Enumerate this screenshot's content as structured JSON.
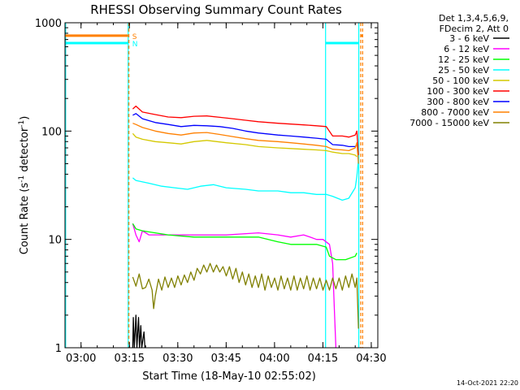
{
  "chart_data": {
    "type": "line",
    "title": "RHESSI Observing Summary Count Rates",
    "xlabel": "Start Time (18-May-10 02:55:02)",
    "ylabel_main": "Count Rate (s",
    "ylabel_sup1": "-1",
    "ylabel_mid": " detector",
    "ylabel_sup2": "-1",
    "ylabel_end": ")",
    "yscale": "log",
    "ylim": [
      1,
      1000
    ],
    "xlim_minutes": [
      0,
      97
    ],
    "x_ticks": [
      {
        "label": "03:00",
        "min": 4.97
      },
      {
        "label": "03:15",
        "min": 19.97
      },
      {
        "label": "03:30",
        "min": 34.97
      },
      {
        "label": "03:45",
        "min": 49.97
      },
      {
        "label": "04:00",
        "min": 64.97
      },
      {
        "label": "04:15",
        "min": 79.97
      },
      {
        "label": "04:30",
        "min": 94.97
      }
    ],
    "y_ticks": [
      {
        "label": "1",
        "value": 1
      },
      {
        "label": "10",
        "value": 10
      },
      {
        "label": "100",
        "value": 100
      },
      {
        "label": "1000",
        "value": 1000
      }
    ],
    "legend_header": [
      "Det 1,3,4,5,6,9,",
      "FDecim 2, Att 0"
    ],
    "series": [
      {
        "name": "3 - 6 keV",
        "color": "#000000",
        "points": [
          [
            21.0,
            1.0
          ],
          [
            21.2,
            1.9
          ],
          [
            21.5,
            1.0
          ],
          [
            22.0,
            2.0
          ],
          [
            22.3,
            1.0
          ],
          [
            22.8,
            1.9
          ],
          [
            23.1,
            1.0
          ],
          [
            23.5,
            1.6
          ],
          [
            23.8,
            1.0
          ],
          [
            24.5,
            1.4
          ],
          [
            24.8,
            1.0
          ]
        ]
      },
      {
        "name": "6 - 12 keV",
        "color": "#ff00ff",
        "points": [
          [
            21,
            14
          ],
          [
            22,
            11
          ],
          [
            23,
            9.5
          ],
          [
            24,
            12
          ],
          [
            26,
            11
          ],
          [
            28,
            11
          ],
          [
            32,
            11
          ],
          [
            40,
            11
          ],
          [
            50,
            11
          ],
          [
            60,
            11.5
          ],
          [
            66,
            11
          ],
          [
            70,
            10.5
          ],
          [
            74,
            11
          ],
          [
            76,
            10.5
          ],
          [
            78,
            10
          ],
          [
            80,
            10
          ],
          [
            82,
            9
          ],
          [
            83,
            6
          ],
          [
            83.6,
            2
          ],
          [
            84,
            1
          ]
        ]
      },
      {
        "name": "12 - 25 keV",
        "color": "#00ff00",
        "points": [
          [
            21,
            14
          ],
          [
            22,
            12.5
          ],
          [
            24,
            12
          ],
          [
            28,
            11.5
          ],
          [
            32,
            11
          ],
          [
            40,
            10.5
          ],
          [
            50,
            10.5
          ],
          [
            60,
            10.5
          ],
          [
            66,
            9.5
          ],
          [
            70,
            9
          ],
          [
            74,
            9
          ],
          [
            78,
            9
          ],
          [
            81,
            8.5
          ],
          [
            82,
            7
          ],
          [
            84,
            6.5
          ],
          [
            87,
            6.5
          ],
          [
            90,
            7
          ],
          [
            90.5,
            7.5
          ]
        ]
      },
      {
        "name": "25 - 50 keV",
        "color": "#00ffff",
        "points": [
          [
            21,
            37
          ],
          [
            22,
            35
          ],
          [
            26,
            33
          ],
          [
            30,
            31
          ],
          [
            34,
            30
          ],
          [
            38,
            29
          ],
          [
            42,
            31
          ],
          [
            46,
            32
          ],
          [
            50,
            30
          ],
          [
            56,
            29
          ],
          [
            60,
            28
          ],
          [
            66,
            28
          ],
          [
            70,
            27
          ],
          [
            74,
            27
          ],
          [
            78,
            26
          ],
          [
            81,
            26
          ],
          [
            83,
            25
          ],
          [
            86,
            23
          ],
          [
            88,
            24
          ],
          [
            90,
            30
          ],
          [
            90.5,
            38
          ],
          [
            91,
            55
          ]
        ]
      },
      {
        "name": "50 - 100 keV",
        "color": "#d4c800",
        "points": [
          [
            21,
            95
          ],
          [
            22,
            88
          ],
          [
            24,
            84
          ],
          [
            28,
            80
          ],
          [
            32,
            78
          ],
          [
            36,
            76
          ],
          [
            40,
            80
          ],
          [
            44,
            82
          ],
          [
            50,
            78
          ],
          [
            56,
            75
          ],
          [
            60,
            72
          ],
          [
            66,
            70
          ],
          [
            70,
            69
          ],
          [
            74,
            68
          ],
          [
            78,
            67
          ],
          [
            81,
            66
          ],
          [
            83,
            64
          ],
          [
            86,
            62
          ],
          [
            88,
            62
          ],
          [
            90,
            60
          ],
          [
            90.5,
            58
          ]
        ]
      },
      {
        "name": "100 - 300 keV",
        "color": "#ff0000",
        "points": [
          [
            21,
            160
          ],
          [
            22,
            170
          ],
          [
            24,
            150
          ],
          [
            28,
            142
          ],
          [
            32,
            135
          ],
          [
            36,
            133
          ],
          [
            40,
            137
          ],
          [
            44,
            138
          ],
          [
            48,
            134
          ],
          [
            52,
            130
          ],
          [
            56,
            126
          ],
          [
            60,
            122
          ],
          [
            66,
            118
          ],
          [
            70,
            116
          ],
          [
            74,
            114
          ],
          [
            78,
            112
          ],
          [
            81,
            110
          ],
          [
            83,
            90
          ],
          [
            86,
            90
          ],
          [
            88,
            88
          ],
          [
            90,
            92
          ],
          [
            90.5,
            100
          ],
          [
            91,
            60
          ]
        ]
      },
      {
        "name": "300 - 800 keV",
        "color": "#0000ff",
        "points": [
          [
            21,
            140
          ],
          [
            22,
            145
          ],
          [
            24,
            130
          ],
          [
            28,
            120
          ],
          [
            32,
            115
          ],
          [
            36,
            110
          ],
          [
            40,
            113
          ],
          [
            44,
            112
          ],
          [
            48,
            110
          ],
          [
            52,
            106
          ],
          [
            56,
            100
          ],
          [
            60,
            96
          ],
          [
            66,
            92
          ],
          [
            70,
            90
          ],
          [
            74,
            88
          ],
          [
            78,
            86
          ],
          [
            81,
            84
          ],
          [
            83,
            75
          ],
          [
            86,
            74
          ],
          [
            88,
            72
          ],
          [
            90,
            72
          ],
          [
            90.5,
            74
          ]
        ]
      },
      {
        "name": "800 - 7000 keV",
        "color": "#ff8000",
        "points": [
          [
            21,
            118
          ],
          [
            22,
            115
          ],
          [
            24,
            108
          ],
          [
            28,
            100
          ],
          [
            32,
            95
          ],
          [
            36,
            92
          ],
          [
            40,
            96
          ],
          [
            44,
            97
          ],
          [
            48,
            93
          ],
          [
            52,
            89
          ],
          [
            56,
            85
          ],
          [
            60,
            82
          ],
          [
            66,
            80
          ],
          [
            70,
            78
          ],
          [
            74,
            76
          ],
          [
            78,
            74
          ],
          [
            81,
            72
          ],
          [
            83,
            68
          ],
          [
            86,
            67
          ],
          [
            88,
            66
          ],
          [
            90,
            70
          ],
          [
            90.5,
            78
          ],
          [
            91,
            50
          ]
        ]
      },
      {
        "name": "7000 - 15000 keV",
        "color": "#808000",
        "points": [
          [
            21,
            4.5
          ],
          [
            22,
            3.7
          ],
          [
            23,
            4.8
          ],
          [
            24,
            3.5
          ],
          [
            25,
            3.6
          ],
          [
            26,
            4.3
          ],
          [
            27,
            3.4
          ],
          [
            27.5,
            2.3
          ],
          [
            28,
            3.0
          ],
          [
            29,
            4.3
          ],
          [
            30,
            3.4
          ],
          [
            31,
            4.5
          ],
          [
            32,
            3.6
          ],
          [
            33,
            4.4
          ],
          [
            34,
            3.6
          ],
          [
            35,
            4.6
          ],
          [
            36,
            3.8
          ],
          [
            37,
            4.7
          ],
          [
            38,
            4.0
          ],
          [
            39,
            5.0
          ],
          [
            40,
            4.2
          ],
          [
            41,
            5.4
          ],
          [
            42,
            4.8
          ],
          [
            43,
            5.8
          ],
          [
            44,
            5.0
          ],
          [
            45,
            6.0
          ],
          [
            46,
            5.0
          ],
          [
            47,
            5.8
          ],
          [
            48,
            5.0
          ],
          [
            49,
            5.6
          ],
          [
            50,
            4.6
          ],
          [
            51,
            5.6
          ],
          [
            52,
            4.3
          ],
          [
            53,
            5.4
          ],
          [
            54,
            4.0
          ],
          [
            55,
            5.0
          ],
          [
            56,
            3.8
          ],
          [
            57,
            4.8
          ],
          [
            58,
            3.6
          ],
          [
            59,
            4.6
          ],
          [
            60,
            3.6
          ],
          [
            61,
            4.8
          ],
          [
            62,
            3.4
          ],
          [
            63,
            4.6
          ],
          [
            64,
            3.6
          ],
          [
            65,
            4.4
          ],
          [
            66,
            3.4
          ],
          [
            67,
            4.6
          ],
          [
            68,
            3.5
          ],
          [
            69,
            4.4
          ],
          [
            70,
            3.4
          ],
          [
            71,
            4.6
          ],
          [
            72,
            3.4
          ],
          [
            73,
            4.4
          ],
          [
            74,
            3.5
          ],
          [
            75,
            4.6
          ],
          [
            76,
            3.4
          ],
          [
            77,
            4.4
          ],
          [
            78,
            3.5
          ],
          [
            79,
            4.4
          ],
          [
            80,
            3.4
          ],
          [
            81,
            4.2
          ],
          [
            82,
            3.4
          ],
          [
            83,
            4.4
          ],
          [
            84,
            3.5
          ],
          [
            85,
            4.4
          ],
          [
            86,
            3.4
          ],
          [
            87,
            4.6
          ],
          [
            88,
            3.6
          ],
          [
            89,
            4.8
          ],
          [
            90,
            3.6
          ],
          [
            90.5,
            4.4
          ],
          [
            91,
            1.5
          ]
        ]
      }
    ],
    "flag_lines": [
      {
        "label": "S",
        "color": "#ff8000",
        "value": 760,
        "spans": [
          [
            0,
            19.6
          ],
          [
            91.7,
            92.3
          ]
        ]
      },
      {
        "label": "N",
        "color": "#00ffff",
        "value": 650,
        "spans": [
          [
            0,
            19.6
          ],
          [
            80.8,
            91.1
          ]
        ]
      }
    ],
    "vlines": [
      {
        "color": "#00ffff",
        "min": 0.2,
        "dash": false
      },
      {
        "color": "#00ffff",
        "min": 19.6,
        "dash": false
      },
      {
        "color": "#ff8000",
        "min": 19.8,
        "dash": true
      },
      {
        "color": "#00ffff",
        "min": 80.8,
        "dash": false
      },
      {
        "color": "#00ffff",
        "min": 91.1,
        "dash": false
      },
      {
        "color": "#ff8000",
        "min": 91.7,
        "dash": true
      },
      {
        "color": "#ff8000",
        "min": 92.3,
        "dash": true
      }
    ],
    "footer_date": "14-Oct-2021 22:20"
  }
}
